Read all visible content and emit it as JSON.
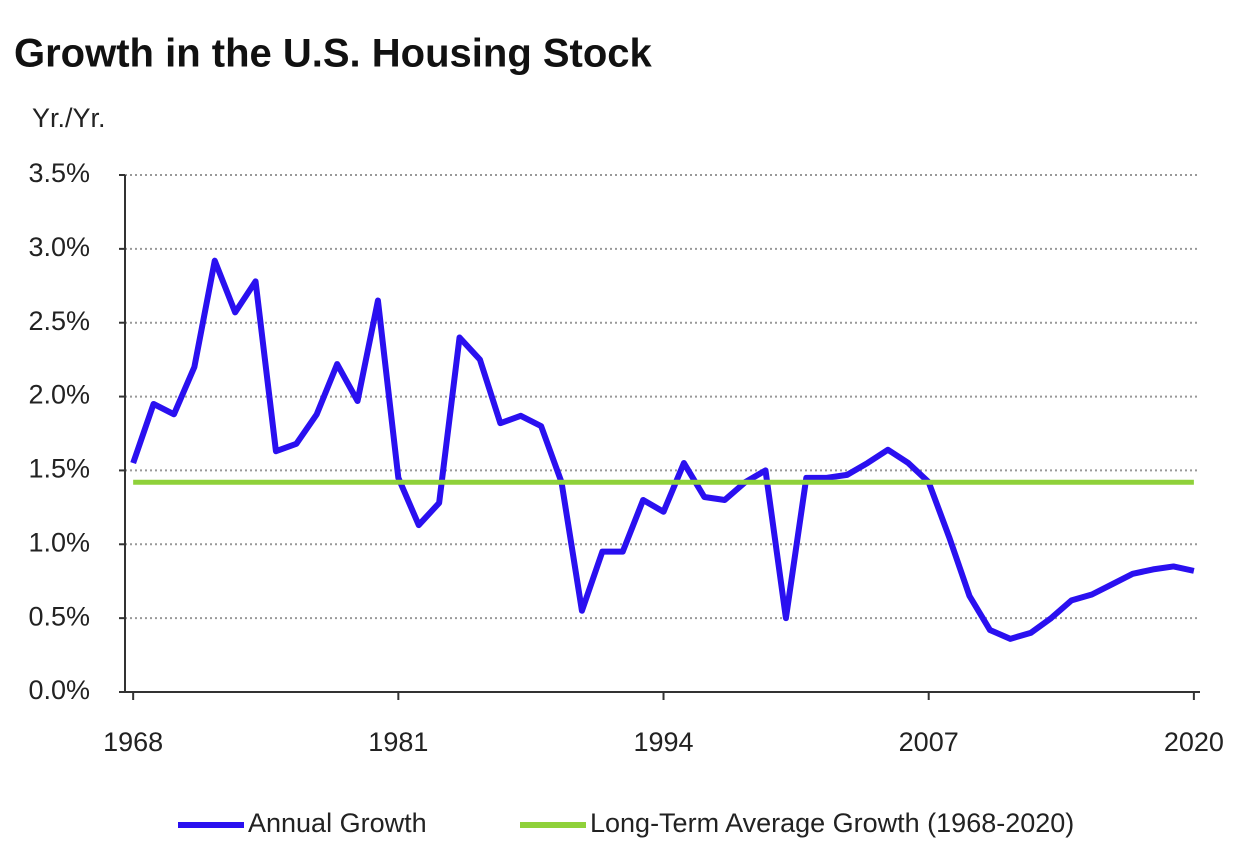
{
  "chart_data": {
    "type": "line",
    "title": "Growth in the U.S. Housing Stock",
    "y_label": "Yr./Yr.",
    "x": [
      1968,
      1969,
      1970,
      1971,
      1972,
      1973,
      1974,
      1975,
      1976,
      1977,
      1978,
      1979,
      1980,
      1981,
      1982,
      1983,
      1984,
      1985,
      1986,
      1987,
      1988,
      1989,
      1990,
      1991,
      1992,
      1993,
      1994,
      1995,
      1996,
      1997,
      1998,
      1999,
      2000,
      2001,
      2002,
      2003,
      2004,
      2005,
      2006,
      2007,
      2008,
      2009,
      2010,
      2011,
      2012,
      2013,
      2014,
      2015,
      2016,
      2017,
      2018,
      2019,
      2020
    ],
    "series": [
      {
        "name": "Annual Growth",
        "color": "#2a10f0",
        "values": [
          1.55,
          1.95,
          1.88,
          2.2,
          2.92,
          2.57,
          2.78,
          1.63,
          1.68,
          1.88,
          2.22,
          1.97,
          2.65,
          1.45,
          1.13,
          1.28,
          2.4,
          2.25,
          1.82,
          1.87,
          1.8,
          1.42,
          0.55,
          0.95,
          0.95,
          1.3,
          1.22,
          1.55,
          1.32,
          1.3,
          1.42,
          1.5,
          0.5,
          1.45,
          1.45,
          1.47,
          1.55,
          1.64,
          1.55,
          1.42,
          1.05,
          0.65,
          0.42,
          0.36,
          0.4,
          0.5,
          0.62,
          0.66,
          0.73,
          0.8,
          0.83,
          0.85,
          0.82
        ]
      },
      {
        "name": "Long-Term Average Growth (1968-2020)",
        "color": "#8fd13a",
        "x": [
          1968,
          2020
        ],
        "values": [
          1.42,
          1.42
        ]
      }
    ],
    "xlim": [
      1967.6,
      2020.3
    ],
    "xticks": [
      1968,
      1981,
      1994,
      2007,
      2020
    ],
    "ylim": [
      0,
      3.5
    ],
    "yticks": [
      {
        "value": 0,
        "label": "0.0%"
      },
      {
        "value": 0.5,
        "label": "0.5%"
      },
      {
        "value": 1,
        "label": "1.0%"
      },
      {
        "value": 1.5,
        "label": "1.5%"
      },
      {
        "value": 2,
        "label": "2.0%"
      },
      {
        "value": 2.5,
        "label": "2.5%"
      },
      {
        "value": 3,
        "label": "3.0%"
      },
      {
        "value": 3.5,
        "label": "3.5%"
      }
    ],
    "grid": true,
    "legend": "bottom"
  }
}
